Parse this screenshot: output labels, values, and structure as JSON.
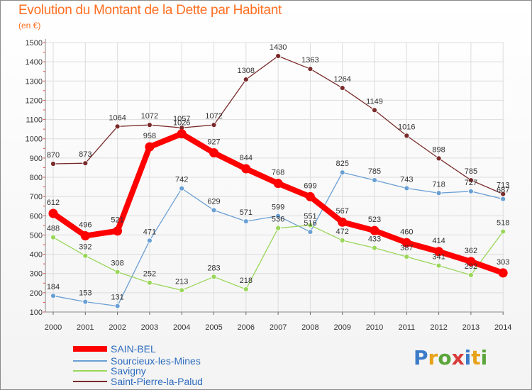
{
  "title": "Evolution du Montant de la Dette par Habitant",
  "subtitle": "(en €)",
  "logo": "Proxiti",
  "chart_data": {
    "type": "line",
    "x": [
      "2000",
      "2001",
      "2002",
      "2003",
      "2004",
      "2005",
      "2006",
      "2007",
      "2008",
      "2009",
      "2010",
      "2011",
      "2012",
      "2013",
      "2014"
    ],
    "yticks": [
      100,
      200,
      300,
      400,
      500,
      600,
      700,
      800,
      900,
      1000,
      1100,
      1200,
      1300,
      1400,
      1500
    ],
    "ylim": [
      100,
      1500
    ],
    "grid": true,
    "legend_position": "bottom-left",
    "series": [
      {
        "name": "SAIN-BEL",
        "color": "#ff0000",
        "values": [
          612,
          496,
          521,
          958,
          1026,
          927,
          844,
          768,
          699,
          567,
          523,
          460,
          414,
          362,
          303
        ],
        "labels": [
          "612",
          "496",
          "521",
          "958",
          "1026",
          "927",
          "844",
          "768",
          "699",
          "567",
          "523",
          "460",
          "414",
          "362",
          "303"
        ]
      },
      {
        "name": "Sourcieux-les-Mines",
        "color": "#6a9fd4",
        "values": [
          184,
          153,
          131,
          471,
          742,
          629,
          571,
          599,
          516,
          825,
          785,
          743,
          718,
          727,
          687
        ],
        "labels": [
          "184",
          "153",
          "131",
          "471",
          "742",
          "629",
          "571",
          "599",
          "516",
          "825",
          "785",
          "743",
          "718",
          "727",
          "687"
        ]
      },
      {
        "name": "Savigny",
        "color": "#99d65a",
        "values": [
          488,
          392,
          308,
          252,
          213,
          283,
          218,
          536,
          551,
          472,
          433,
          387,
          341,
          292,
          518
        ],
        "labels": [
          "488",
          "392",
          "308",
          "252",
          "213",
          "283",
          "218",
          "536",
          "551",
          "472",
          "433",
          "387",
          "341",
          "292",
          "518"
        ]
      },
      {
        "name": "Saint-Pierre-la-Palud",
        "color": "#7a2a2a",
        "values": [
          870,
          873,
          1064,
          1072,
          1057,
          1072,
          1308,
          1430,
          1363,
          1264,
          1149,
          1016,
          898,
          785,
          713
        ],
        "labels": [
          "870",
          "873",
          "1064",
          "1072",
          "1057",
          "1072",
          "1308",
          "1430",
          "1363",
          "1264",
          "1149",
          "1016",
          "898",
          "785",
          "713"
        ]
      }
    ]
  }
}
